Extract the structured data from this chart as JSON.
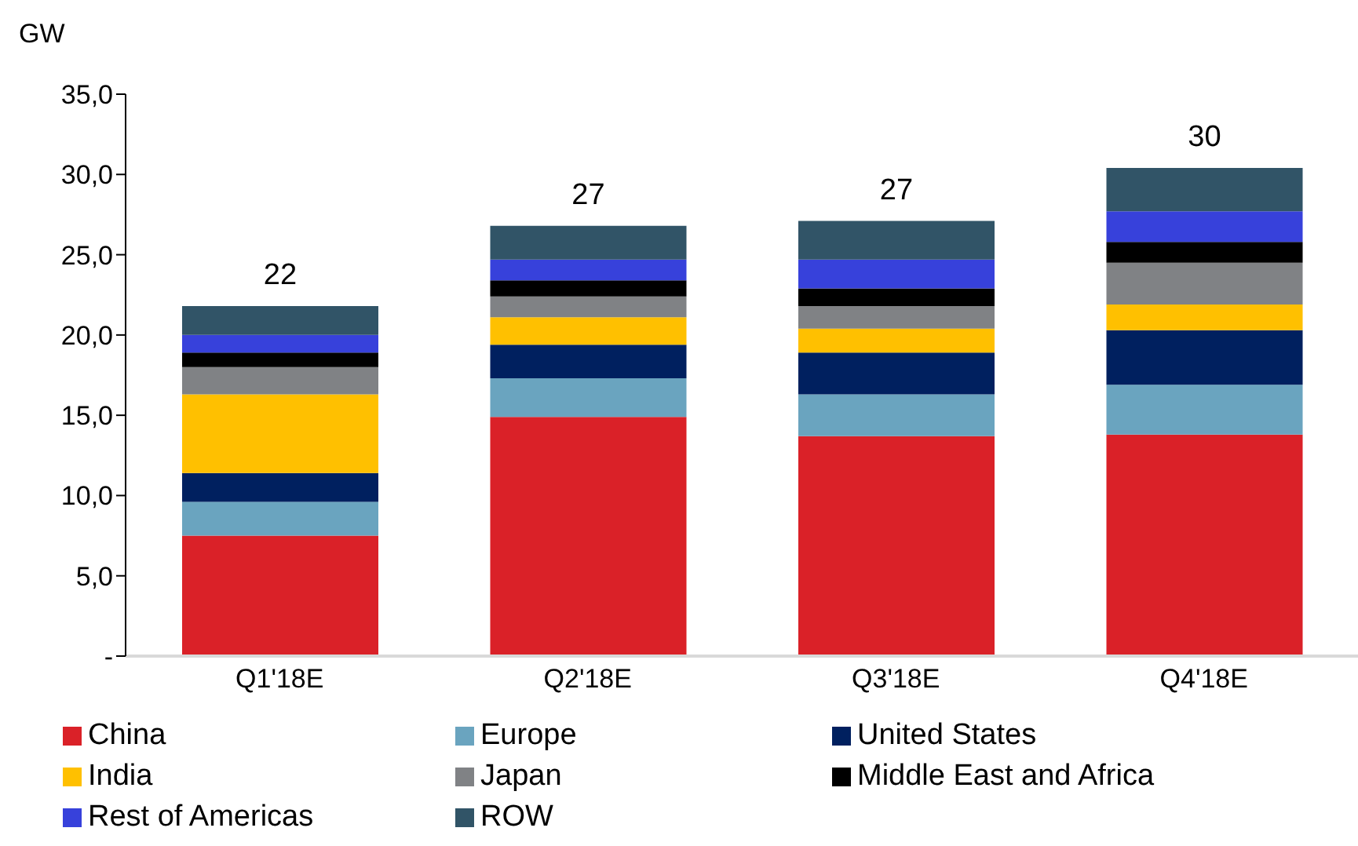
{
  "chart_data": {
    "type": "bar",
    "stacked": true,
    "ylabel": "GW",
    "categories": [
      "Q1'18E",
      "Q2'18E",
      "Q3'18E",
      "Q4'18E"
    ],
    "series": [
      {
        "name": "China",
        "color": "#da2128",
        "values": [
          7.5,
          14.9,
          13.7,
          13.8
        ]
      },
      {
        "name": "Europe",
        "color": "#6aa4bf",
        "values": [
          2.1,
          2.4,
          2.6,
          3.1
        ]
      },
      {
        "name": "United States",
        "color": "#00205f",
        "values": [
          1.8,
          2.1,
          2.6,
          3.4
        ]
      },
      {
        "name": "India",
        "color": "#ffc000",
        "values": [
          4.9,
          1.7,
          1.5,
          1.6
        ]
      },
      {
        "name": "Japan",
        "color": "#808285",
        "values": [
          1.7,
          1.3,
          1.4,
          2.6
        ]
      },
      {
        "name": "Middle East and Africa",
        "color": "#000000",
        "values": [
          0.9,
          1.0,
          1.1,
          1.3
        ]
      },
      {
        "name": "Rest of Americas",
        "color": "#3741db",
        "values": [
          1.1,
          1.3,
          1.8,
          1.9
        ]
      },
      {
        "name": "ROW",
        "color": "#315467",
        "values": [
          1.8,
          2.1,
          2.4,
          2.7
        ]
      }
    ],
    "totals": [
      "22",
      "27",
      "27",
      "30"
    ],
    "ylim": [
      0,
      35
    ],
    "yticks": [
      {
        "value": 0,
        "label": "-"
      },
      {
        "value": 5,
        "label": "5,0"
      },
      {
        "value": 10,
        "label": "10,0"
      },
      {
        "value": 15,
        "label": "15,0"
      },
      {
        "value": 20,
        "label": "20,0"
      },
      {
        "value": 25,
        "label": "25,0"
      },
      {
        "value": 30,
        "label": "30,0"
      },
      {
        "value": 35,
        "label": "35,0"
      }
    ],
    "grid": false,
    "legend": "bottom"
  }
}
